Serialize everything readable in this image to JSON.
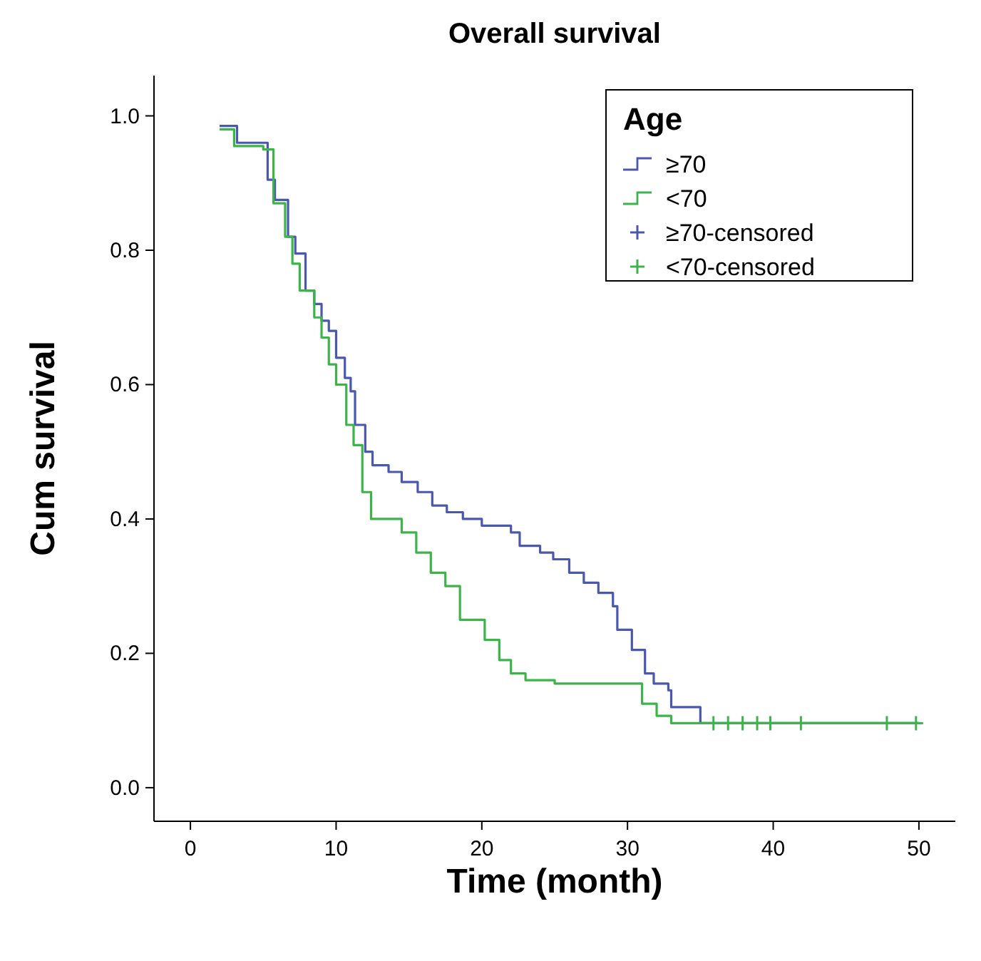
{
  "chart_data": {
    "type": "step",
    "title": "Overall survival",
    "xlabel": "Time (month)",
    "ylabel": "Cum survival",
    "legend_title": "Age",
    "legend": "top right",
    "grid": false,
    "line_style": "solid",
    "xlim": [
      -2.5,
      52.5
    ],
    "ylim": [
      -0.05,
      1.06
    ],
    "xticks": [
      0,
      10,
      20,
      30,
      40,
      50
    ],
    "yticks": [
      {
        "value": 0,
        "label": "0.0"
      },
      {
        "value": 0.2,
        "label": "0.2"
      },
      {
        "value": 0.4,
        "label": "0.4"
      },
      {
        "value": 0.6,
        "label": "0.6"
      },
      {
        "value": 0.8,
        "label": "0.8"
      },
      {
        "value": 1,
        "label": "1.0"
      }
    ],
    "series": [
      {
        "name": "≥70",
        "color": "#4a58ad",
        "x": [
          2,
          3.2,
          5.3,
          5.8,
          6.7,
          7.2,
          7.9,
          8.5,
          9.0,
          9.5,
          10.0,
          10.6,
          11.0,
          11.3,
          12.0,
          12.5,
          13.6,
          14.5,
          15.6,
          16.6,
          17.6,
          18.7,
          20.0,
          22.0,
          22.6,
          24.0,
          24.9,
          26.0,
          27.0,
          28.0,
          29.0,
          29.3,
          30.3,
          31.2,
          31.8,
          32.8,
          33.0,
          35.0,
          50
        ],
        "values": [
          0.985,
          0.96,
          0.905,
          0.875,
          0.82,
          0.795,
          0.74,
          0.72,
          0.695,
          0.68,
          0.64,
          0.61,
          0.59,
          0.54,
          0.5,
          0.48,
          0.47,
          0.455,
          0.44,
          0.42,
          0.41,
          0.4,
          0.39,
          0.38,
          0.36,
          0.35,
          0.34,
          0.32,
          0.305,
          0.29,
          0.27,
          0.235,
          0.205,
          0.17,
          0.155,
          0.145,
          0.12,
          0.096,
          0.096
        ]
      },
      {
        "name": "<70",
        "color": "#3cb44a",
        "x": [
          2,
          3,
          5,
          5.7,
          6.5,
          7,
          7.5,
          8.5,
          9,
          9.5,
          10,
          10.7,
          11.2,
          11.8,
          12.4,
          14.5,
          15.5,
          16.5,
          17.5,
          18.5,
          20.2,
          21.2,
          22,
          23,
          25,
          31,
          32,
          33,
          50
        ],
        "values": [
          0.98,
          0.955,
          0.95,
          0.87,
          0.82,
          0.78,
          0.74,
          0.7,
          0.67,
          0.63,
          0.6,
          0.54,
          0.51,
          0.44,
          0.4,
          0.38,
          0.35,
          0.32,
          0.3,
          0.25,
          0.22,
          0.19,
          0.17,
          0.16,
          0.155,
          0.125,
          0.107,
          0.096,
          0.096
        ]
      },
      {
        "name": "≥70-censored",
        "type": "scatter",
        "marker": "cross",
        "color": "#4a58ad"
      },
      {
        "name": "<70-censored",
        "type": "scatter",
        "marker": "cross",
        "color": "#3cb44a",
        "x": [
          35.9,
          36.9,
          37.9,
          38.9,
          39.8,
          41.9,
          47.8,
          49.8
        ],
        "values": [
          0.096,
          0.096,
          0.096,
          0.096,
          0.096,
          0.096,
          0.096,
          0.096
        ]
      }
    ]
  }
}
